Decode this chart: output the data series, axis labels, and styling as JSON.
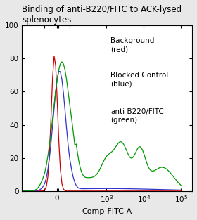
{
  "title": "Binding of anti-B220/FITC to ACK-lysed\nsplenocytes",
  "xlabel": "Comp-FITC-A",
  "ylim": [
    0,
    100
  ],
  "yticks": [
    0,
    20,
    40,
    60,
    80,
    100
  ],
  "legend_labels": [
    "Background\n(red)",
    "Blocked Control\n(blue)",
    "anti-B220/FITC\n(green)"
  ],
  "background_color": "#e8e8e8",
  "plot_bg": "#ffffff",
  "title_fontsize": 8.5,
  "axis_fontsize": 8,
  "tick_fontsize": 7.5,
  "legend_fontsize": 7.5,
  "red_color": "#cc0000",
  "blue_color": "#3333cc",
  "green_color": "#009900",
  "linthresh": 100,
  "linscale": 0.3,
  "xlim_low": -400,
  "xlim_high": 200000
}
